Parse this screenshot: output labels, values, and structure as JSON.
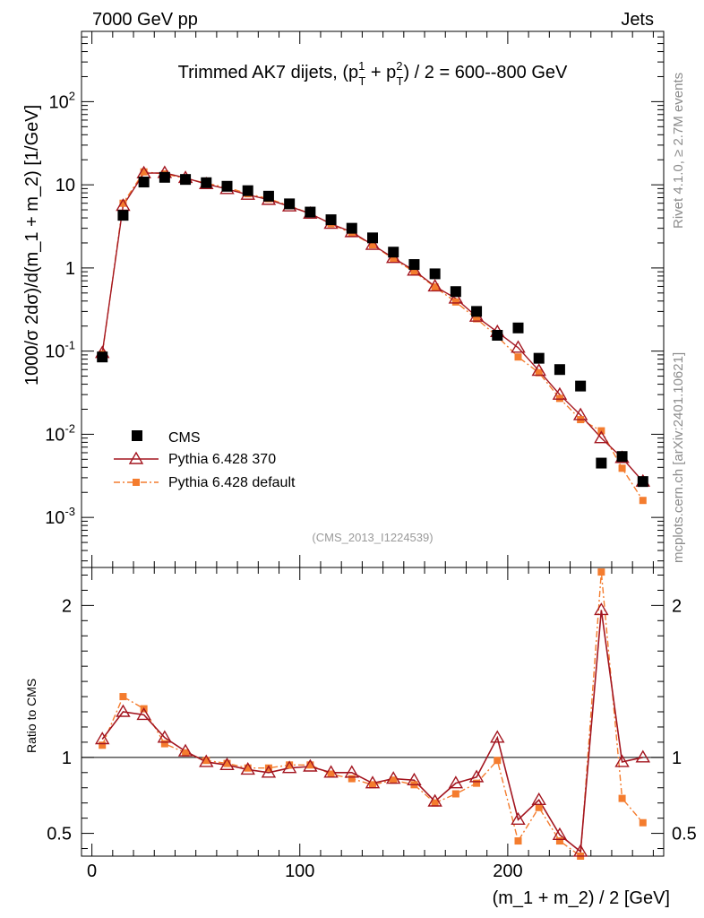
{
  "header": {
    "left": "7000 GeV pp",
    "right": "Jets",
    "side_top": "Rivet 4.1.0, ≥ 2.7M events",
    "side_bottom": "mcplots.cern.ch [arXiv:2401.10621]"
  },
  "chart_data": [
    {
      "type": "scatter",
      "panel": "main",
      "title_parts": {
        "t1": "Trimmed AK7 dijets, (p",
        "sup1": "1",
        "sub1": "T",
        "t2": " + p",
        "sup2": "2",
        "sub2": "T",
        "t3": ") / 2 = 600--800 GeV"
      },
      "ylabel": "1000/σ   2dσ)/d(m_1 + m_2) [1/GeV]",
      "yscale": "log",
      "ylim": [
        0.00025,
        700
      ],
      "xlim": [
        -5,
        275
      ],
      "yticks": [
        {
          "v": 0.001,
          "base": "10",
          "exp": "-3"
        },
        {
          "v": 0.01,
          "base": "10",
          "exp": "-2"
        },
        {
          "v": 0.1,
          "base": "10",
          "exp": "-1"
        },
        {
          "v": 1,
          "base": "1",
          "exp": ""
        },
        {
          "v": 10,
          "base": "10",
          "exp": ""
        },
        {
          "v": 100,
          "base": "10",
          "exp": "2"
        }
      ],
      "watermark": "(CMS_2013_I1224539)",
      "x": [
        5,
        15,
        25,
        35,
        45,
        55,
        65,
        75,
        85,
        95,
        105,
        115,
        125,
        135,
        145,
        155,
        165,
        175,
        185,
        195,
        205,
        215,
        225,
        235,
        245,
        255,
        265
      ],
      "series": [
        {
          "name": "CMS",
          "color": "#000000",
          "marker": "square",
          "values": [
            0.085,
            4.3,
            10.8,
            12.3,
            11.6,
            10.6,
            9.6,
            8.5,
            7.3,
            5.9,
            4.7,
            3.8,
            3.0,
            2.3,
            1.55,
            1.1,
            0.85,
            0.52,
            0.3,
            0.155,
            0.19,
            0.082,
            0.06,
            0.038,
            0.0045,
            0.0054,
            0.0027
          ]
        },
        {
          "name": "Pythia 6.428 370",
          "color": "#a3151f",
          "marker": "triangle",
          "values": [
            0.095,
            5.6,
            13.8,
            13.9,
            12.1,
            10.2,
            8.9,
            7.6,
            6.6,
            5.5,
            4.5,
            3.4,
            2.7,
            1.9,
            1.32,
            0.93,
            0.6,
            0.43,
            0.26,
            0.17,
            0.11,
            0.058,
            0.03,
            0.017,
            0.009,
            0.0052,
            0.0027
          ]
        },
        {
          "name": "Pythia 6.428 default",
          "color": "#f47c2e",
          "marker": "smallsquare",
          "values": [
            0.092,
            6.0,
            14.3,
            13.5,
            12.0,
            10.4,
            9.3,
            7.8,
            6.8,
            5.6,
            4.5,
            3.4,
            2.6,
            1.9,
            1.28,
            0.9,
            0.59,
            0.39,
            0.245,
            0.15,
            0.085,
            0.055,
            0.027,
            0.015,
            0.011,
            0.0039,
            0.0016
          ]
        }
      ],
      "legend": [
        "CMS",
        "Pythia 6.428 370",
        "Pythia 6.428 default"
      ]
    },
    {
      "type": "line",
      "panel": "ratio",
      "ylabel": "Ratio to CMS",
      "xlabel": "(m_1 + m_2) / 2 [GeV]",
      "ylim": [
        0.35,
        2.25
      ],
      "xlim": [
        -5,
        275
      ],
      "yticks": [
        0.5,
        1,
        2
      ],
      "ytick_labels": [
        "0.5",
        "1",
        "2"
      ],
      "xticks": [
        0,
        100,
        200
      ],
      "xtick_labels": [
        "0",
        "100",
        "200"
      ],
      "reference_line": 1,
      "x": [
        5,
        15,
        25,
        35,
        45,
        55,
        65,
        75,
        85,
        95,
        105,
        115,
        125,
        135,
        145,
        155,
        165,
        175,
        185,
        195,
        205,
        215,
        225,
        235,
        245,
        255,
        265
      ],
      "series": [
        {
          "name": "Pythia 6.428 370",
          "color": "#a3151f",
          "values": [
            1.12,
            1.3,
            1.28,
            1.13,
            1.04,
            0.97,
            0.95,
            0.92,
            0.9,
            0.93,
            0.94,
            0.9,
            0.9,
            0.83,
            0.86,
            0.85,
            0.71,
            0.83,
            0.87,
            1.13,
            0.59,
            0.72,
            0.49,
            0.38,
            1.97,
            0.97,
            1.0
          ]
        },
        {
          "name": "Pythia 6.428 default",
          "color": "#f47c2e",
          "values": [
            1.08,
            1.4,
            1.32,
            1.09,
            1.03,
            0.98,
            0.96,
            0.93,
            0.93,
            0.95,
            0.95,
            0.89,
            0.86,
            0.82,
            0.85,
            0.82,
            0.7,
            0.76,
            0.83,
            0.98,
            0.45,
            0.67,
            0.45,
            0.31,
            2.22,
            0.73,
            0.57
          ]
        }
      ]
    }
  ]
}
